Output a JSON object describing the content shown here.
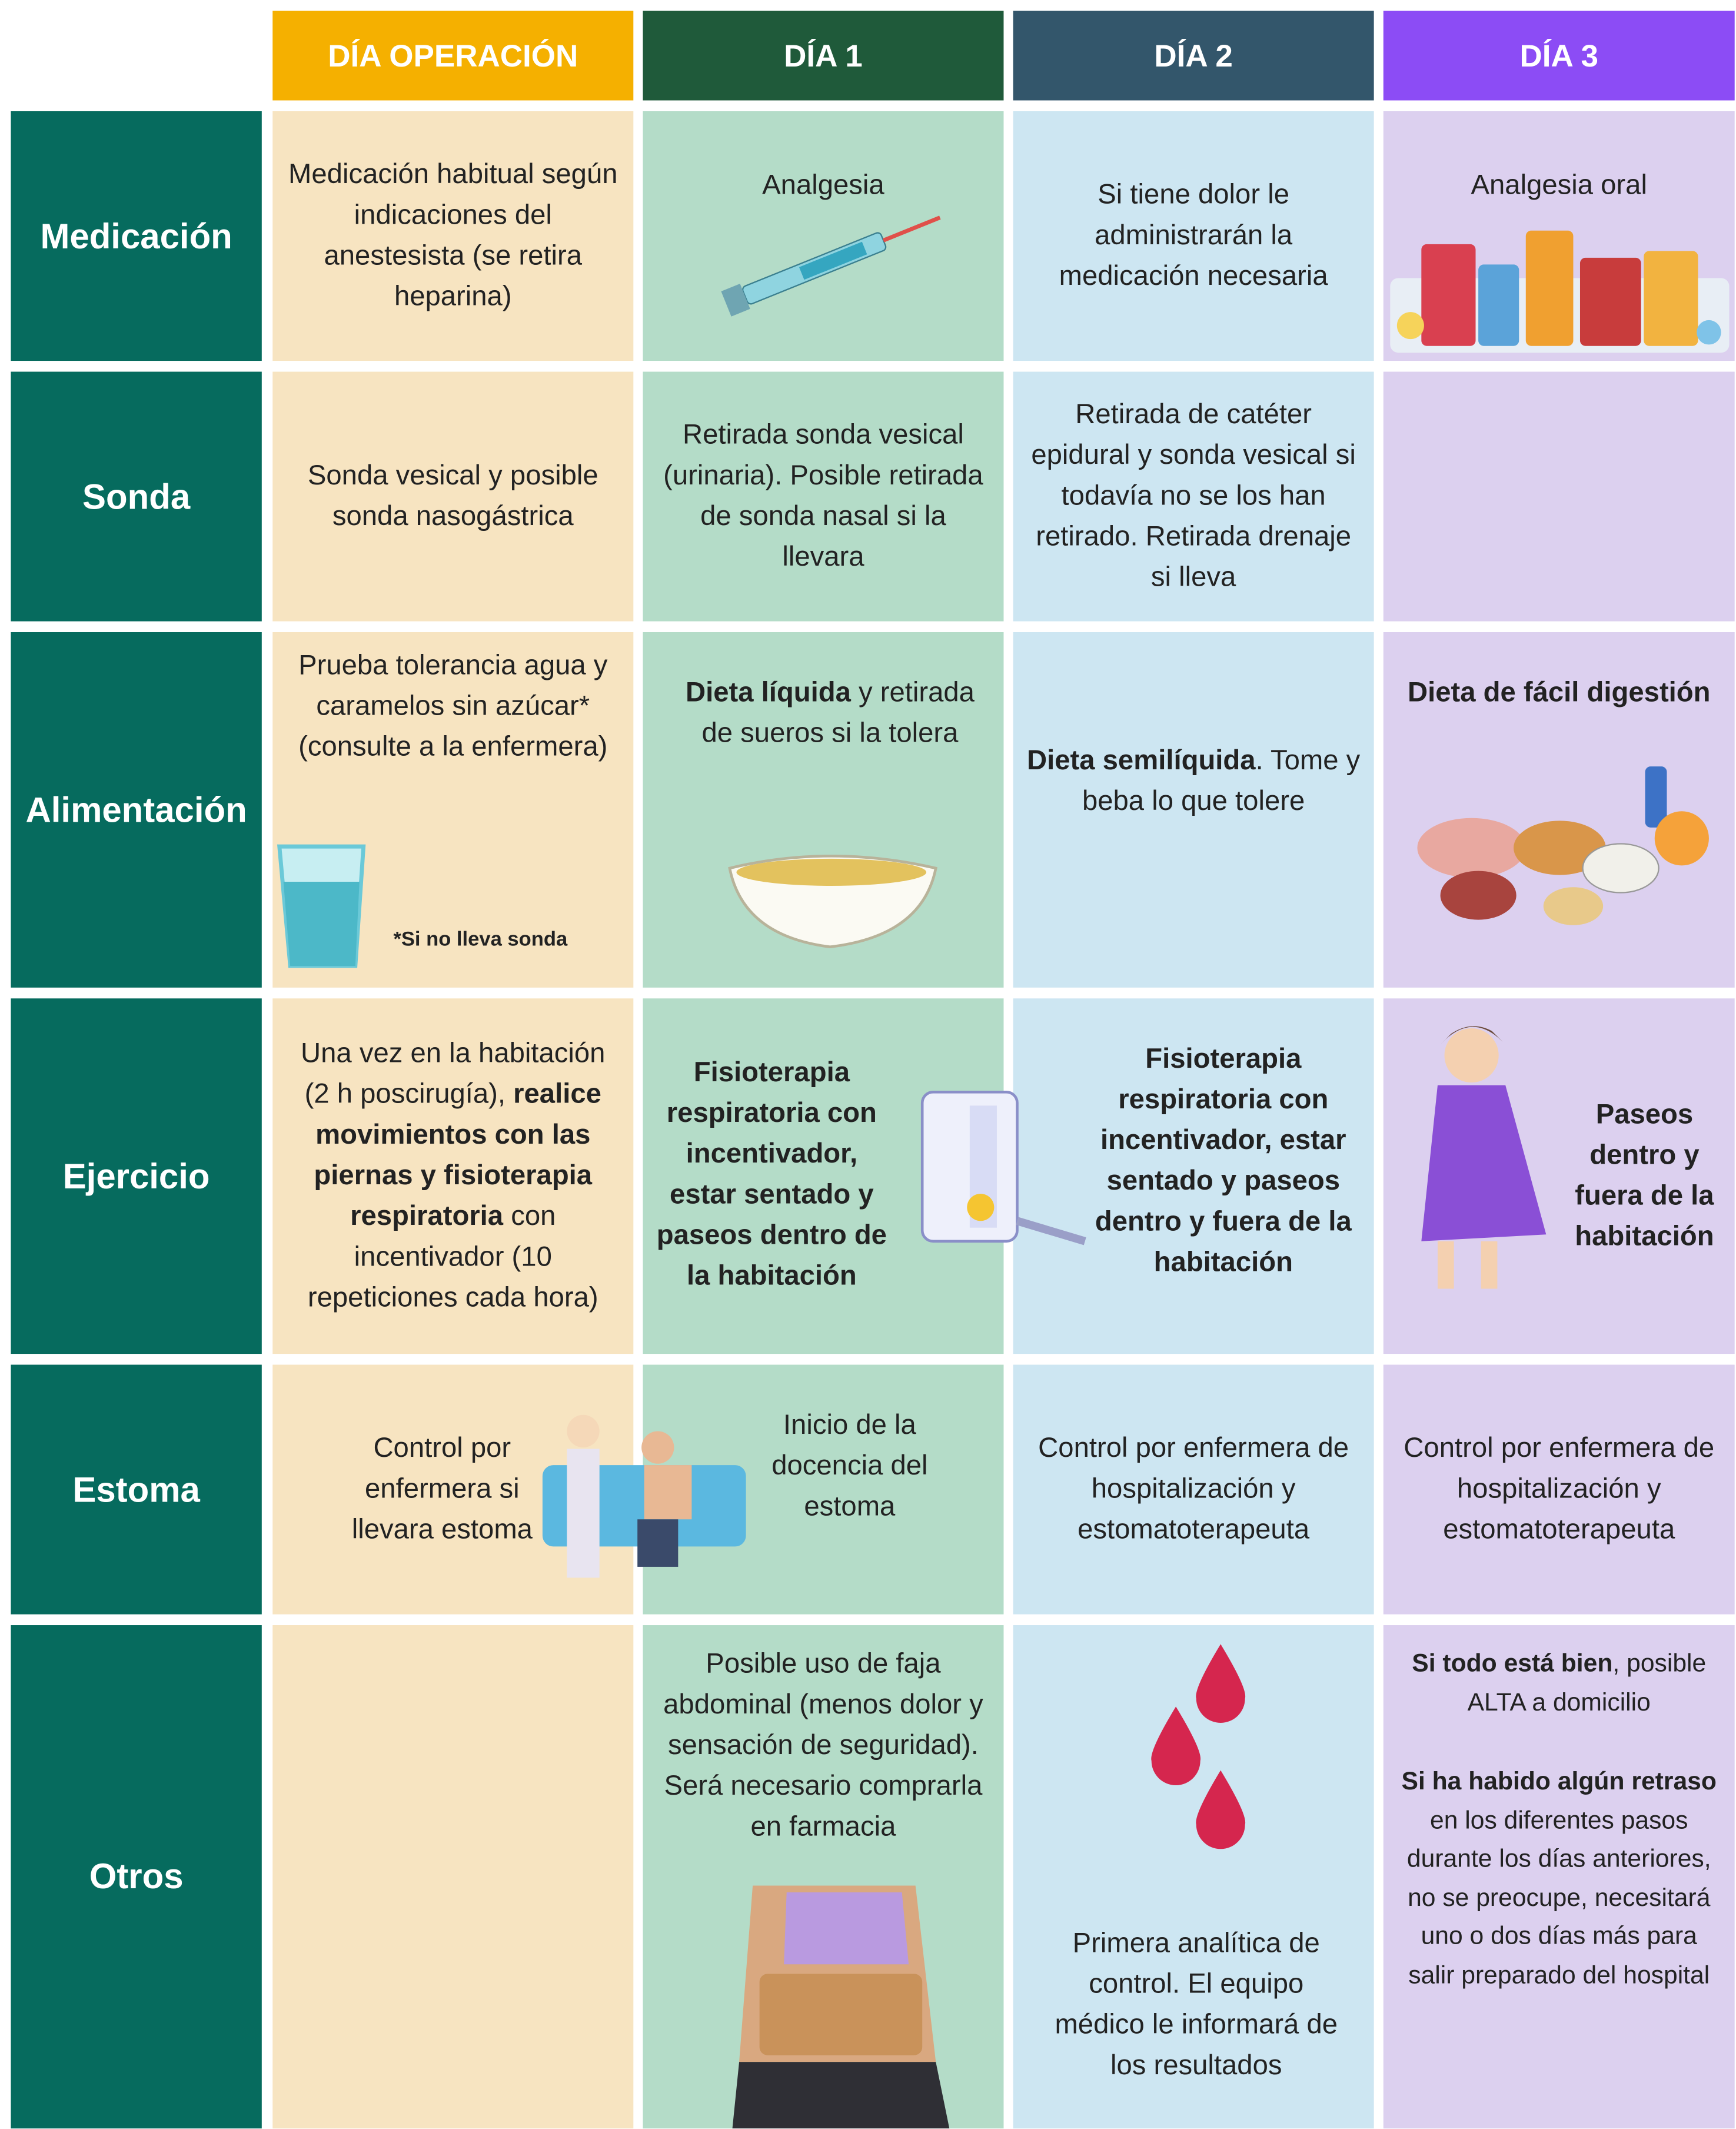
{
  "table": {
    "headers": [
      "DÍA OPERACIÓN",
      "DÍA 1",
      "DÍA 2",
      "DÍA 3"
    ],
    "rows": [
      {
        "label": "Medicación",
        "cells": [
          [
            [
              {
                "text": "Medicación habitual según indicaciones del anestesista (se retira heparina)",
                "bold": false
              }
            ]
          ],
          [
            [
              {
                "text": "Analgesia",
                "bold": false
              }
            ]
          ],
          [
            [
              {
                "text": "Si tiene dolor le administrarán la medicación necesaria",
                "bold": false
              }
            ]
          ],
          [
            [
              {
                "text": "Analgesia oral",
                "bold": false
              }
            ]
          ]
        ]
      },
      {
        "label": "Sonda",
        "cells": [
          [
            [
              {
                "text": "Sonda vesical y posible sonda nasogástrica",
                "bold": false
              }
            ]
          ],
          [
            [
              {
                "text": "Retirada sonda vesical (urinaria). Posible retirada de sonda nasal si la llevara",
                "bold": false
              }
            ]
          ],
          [
            [
              {
                "text": "Retirada de catéter epidural y sonda vesical si todavía no se los han retirado. Retirada drenaje si lleva",
                "bold": false
              }
            ]
          ],
          []
        ]
      },
      {
        "label": "Alimentación",
        "note": "*Si no lleva sonda",
        "cells": [
          [
            [
              {
                "text": "Prueba tolerancia agua y caramelos sin azúcar* (consulte a la enfermera)",
                "bold": false
              }
            ]
          ],
          [
            [
              {
                "text": "Dieta líquida",
                "bold": true
              },
              {
                "text": " y retirada de sueros si la tolera",
                "bold": false
              }
            ]
          ],
          [
            [
              {
                "text": "Dieta semilíquida",
                "bold": true
              },
              {
                "text": ". Tome y beba lo que tolere",
                "bold": false
              }
            ]
          ],
          [
            [
              {
                "text": "Dieta de fácil digestión",
                "bold": true
              }
            ]
          ]
        ]
      },
      {
        "label": "Ejercicio",
        "cells": [
          [
            [
              {
                "text": "Una vez en la habitación (2 h poscirugía), ",
                "bold": false
              },
              {
                "text": "realice movimientos con las piernas y fisioterapia respiratoria",
                "bold": true
              },
              {
                "text": " con incentivador (10 repeticiones cada hora)",
                "bold": false
              }
            ]
          ],
          [
            [
              {
                "text": "Fisioterapia respiratoria con incentivador, estar sentado y paseos dentro de la habitación",
                "bold": true
              }
            ]
          ],
          [
            [
              {
                "text": "Fisioterapia respiratoria con incentivador, estar sentado y paseos dentro y fuera de la habitación",
                "bold": true
              }
            ]
          ],
          [
            [
              {
                "text": "Paseos dentro y fuera de la habitación",
                "bold": true
              }
            ]
          ]
        ]
      },
      {
        "label": "Estoma",
        "cells": [
          [
            [
              {
                "text": "Control por enfermera si llevara estoma",
                "bold": false
              }
            ]
          ],
          [
            [
              {
                "text": "Inicio de la docencia del estoma",
                "bold": false
              }
            ]
          ],
          [
            [
              {
                "text": "Control por enfermera de hospitalización y estomatoterapeuta",
                "bold": false
              }
            ]
          ],
          [
            [
              {
                "text": "Control por enfermera de hospitalización y estomatoterapeuta",
                "bold": false
              }
            ]
          ]
        ]
      },
      {
        "label": "Otros",
        "cells": [
          [],
          [
            [
              {
                "text": "Posible uso de faja abdominal (menos dolor y sensación de seguridad). Será necesario comprarla en farmacia",
                "bold": false
              }
            ]
          ],
          [
            [
              {
                "text": "Primera analítica de control. El equipo médico le informará de los resultados",
                "bold": false
              }
            ]
          ],
          [
            [
              {
                "text": "Si todo está bien",
                "bold": true
              },
              {
                "text": ", posible ALTA a domicilio",
                "bold": false
              }
            ],
            [
              {
                "text": "Si ha habido algún retraso",
                "bold": true
              },
              {
                "text": " en los diferentes pasos durante los días anteriores, no se preocupe, necesitará uno o dos días más para salir preparado del hospital",
                "bold": false
              }
            ]
          ]
        ]
      }
    ]
  }
}
